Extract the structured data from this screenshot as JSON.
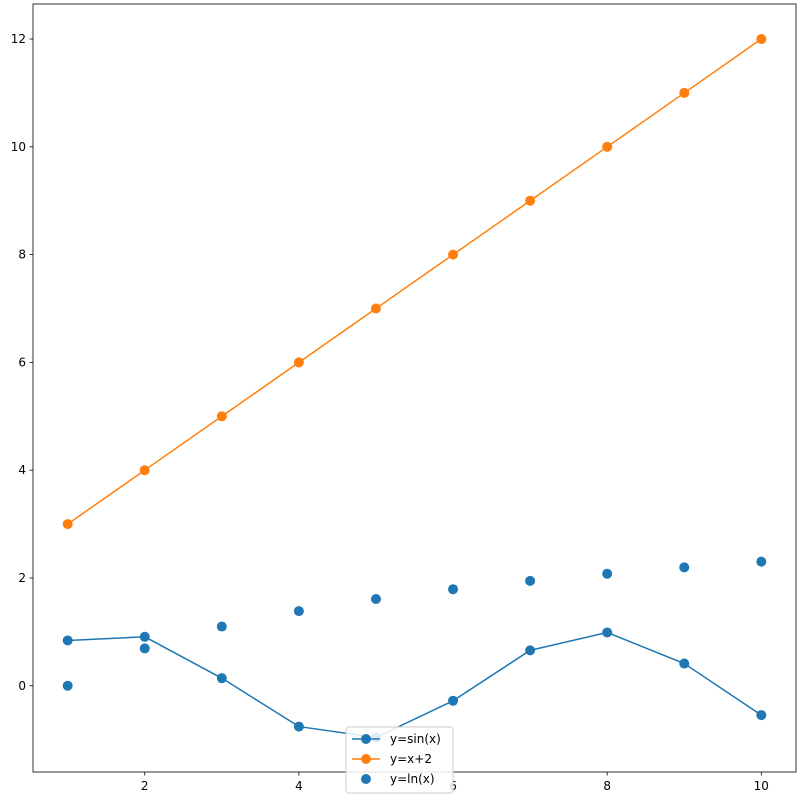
{
  "chart_data": {
    "type": "line",
    "x": [
      1,
      2,
      3,
      4,
      5,
      6,
      7,
      8,
      9,
      10
    ],
    "xlim": [
      0.55,
      10.45
    ],
    "ylim": [
      -1.6,
      12.65
    ],
    "x_ticks": [
      2,
      4,
      6,
      8,
      10
    ],
    "y_ticks": [
      0,
      2,
      4,
      6,
      8,
      10,
      12
    ],
    "grid": false,
    "legend_position": "bottom-center",
    "series": [
      {
        "name": "y=sin(x)",
        "style": "line-marker",
        "color": "#1f77b4",
        "values": [
          0.841,
          0.909,
          0.141,
          -0.757,
          -0.959,
          -0.279,
          0.657,
          0.989,
          0.412,
          -0.544
        ]
      },
      {
        "name": "y=x+2",
        "style": "line-marker",
        "color": "#ff7f0e",
        "values": [
          3,
          4,
          5,
          6,
          7,
          8,
          9,
          10,
          11,
          12
        ]
      },
      {
        "name": "y=ln(x)",
        "style": "marker",
        "color": "#1f77b4",
        "values": [
          0,
          0.693,
          1.099,
          1.386,
          1.609,
          1.792,
          1.946,
          2.079,
          2.197,
          2.303
        ]
      }
    ]
  }
}
